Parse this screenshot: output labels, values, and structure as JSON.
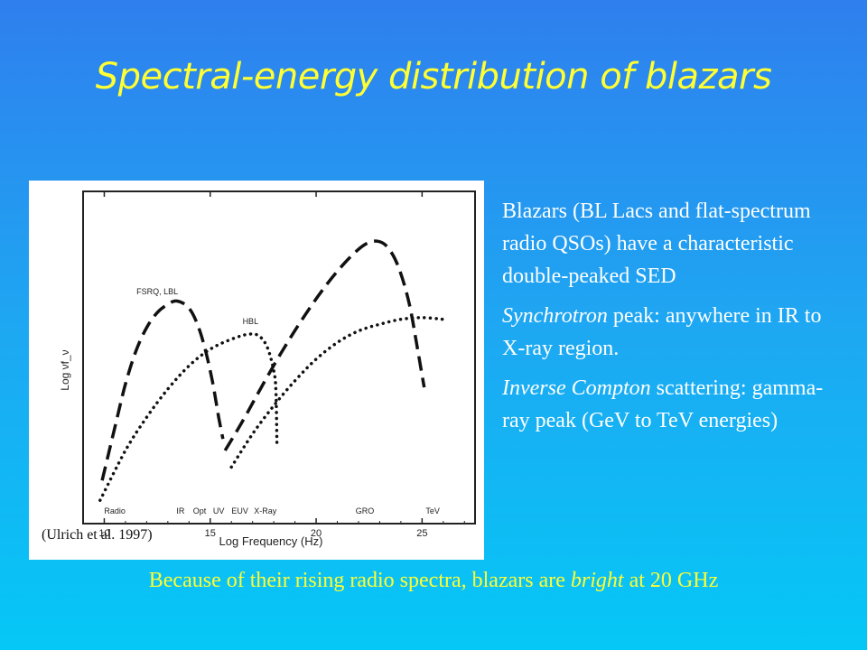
{
  "title": "Spectral-energy distribution of blazars",
  "citation": "(Ulrich et al. 1997)",
  "bullets": [
    {
      "text": "Blazars (BL Lacs and flat-spectrum radio QSOs) have a characteristic double-peaked SED"
    },
    {
      "em": "Synchrotron",
      "text": " peak: anywhere in IR to X-ray region."
    },
    {
      "em": "Inverse Compton",
      "text": " scattering: gamma- ray peak (GeV to TeV energies)"
    }
  ],
  "footer": {
    "before": "Because of their rising radio spectra, blazars are ",
    "em": "bright",
    "after": " at 20 GHz"
  },
  "chart_data": {
    "type": "line",
    "xlabel": "Log Frequency (Hz)",
    "ylabel": "Log νf_ν",
    "xlim": [
      9,
      27.5
    ],
    "ylim": [
      0,
      10
    ],
    "xticks": [
      10,
      15,
      20,
      25
    ],
    "band_labels": [
      {
        "label": "Radio",
        "x": 10.5
      },
      {
        "label": "IR",
        "x": 13.6
      },
      {
        "label": "Opt",
        "x": 14.5
      },
      {
        "label": "UV",
        "x": 15.4
      },
      {
        "label": "EUV",
        "x": 16.4
      },
      {
        "label": "X-Ray",
        "x": 17.6
      },
      {
        "label": "GRO",
        "x": 22.3
      },
      {
        "label": "TeV",
        "x": 25.5
      }
    ],
    "series": [
      {
        "name": "FSRQ, LBL",
        "style": "dashed",
        "label_at": [
          12.5,
          6.9
        ],
        "segments": [
          [
            [
              9.9,
              1.3
            ],
            [
              10.5,
              2.9
            ],
            [
              11.0,
              4.2
            ],
            [
              11.5,
              5.2
            ],
            [
              12.0,
              5.9
            ],
            [
              12.5,
              6.35
            ],
            [
              13.0,
              6.6
            ],
            [
              13.4,
              6.7
            ],
            [
              13.9,
              6.55
            ],
            [
              14.3,
              6.15
            ],
            [
              14.7,
              5.4
            ],
            [
              15.1,
              4.3
            ],
            [
              15.4,
              3.2
            ],
            [
              15.6,
              2.55
            ]
          ],
          [
            [
              15.7,
              2.2
            ],
            [
              16.5,
              3.05
            ],
            [
              17.5,
              4.2
            ],
            [
              18.5,
              5.3
            ],
            [
              19.5,
              6.3
            ],
            [
              20.5,
              7.2
            ],
            [
              21.5,
              7.95
            ],
            [
              22.3,
              8.4
            ],
            [
              22.9,
              8.5
            ],
            [
              23.4,
              8.3
            ],
            [
              23.9,
              7.7
            ],
            [
              24.4,
              6.6
            ],
            [
              24.8,
              5.2
            ],
            [
              25.1,
              4.1
            ]
          ]
        ]
      },
      {
        "name": "HBL",
        "style": "dotted",
        "label_at": [
          16.9,
          6.0
        ],
        "segments": [
          [
            [
              9.8,
              0.7
            ],
            [
              11.0,
              2.2
            ],
            [
              12.0,
              3.2
            ],
            [
              13.0,
              4.05
            ],
            [
              14.0,
              4.75
            ],
            [
              15.0,
              5.25
            ],
            [
              16.0,
              5.55
            ],
            [
              16.8,
              5.7
            ],
            [
              17.3,
              5.65
            ],
            [
              17.7,
              5.3
            ],
            [
              18.0,
              4.6
            ],
            [
              18.1,
              4.0
            ],
            [
              18.15,
              2.3
            ]
          ],
          [
            [
              16.0,
              1.7
            ],
            [
              17.0,
              2.7
            ],
            [
              18.0,
              3.55
            ],
            [
              19.0,
              4.3
            ],
            [
              20.0,
              4.95
            ],
            [
              21.0,
              5.45
            ],
            [
              22.0,
              5.8
            ],
            [
              23.0,
              6.0
            ],
            [
              24.0,
              6.15
            ],
            [
              25.0,
              6.2
            ],
            [
              26.0,
              6.15
            ]
          ]
        ]
      }
    ]
  }
}
